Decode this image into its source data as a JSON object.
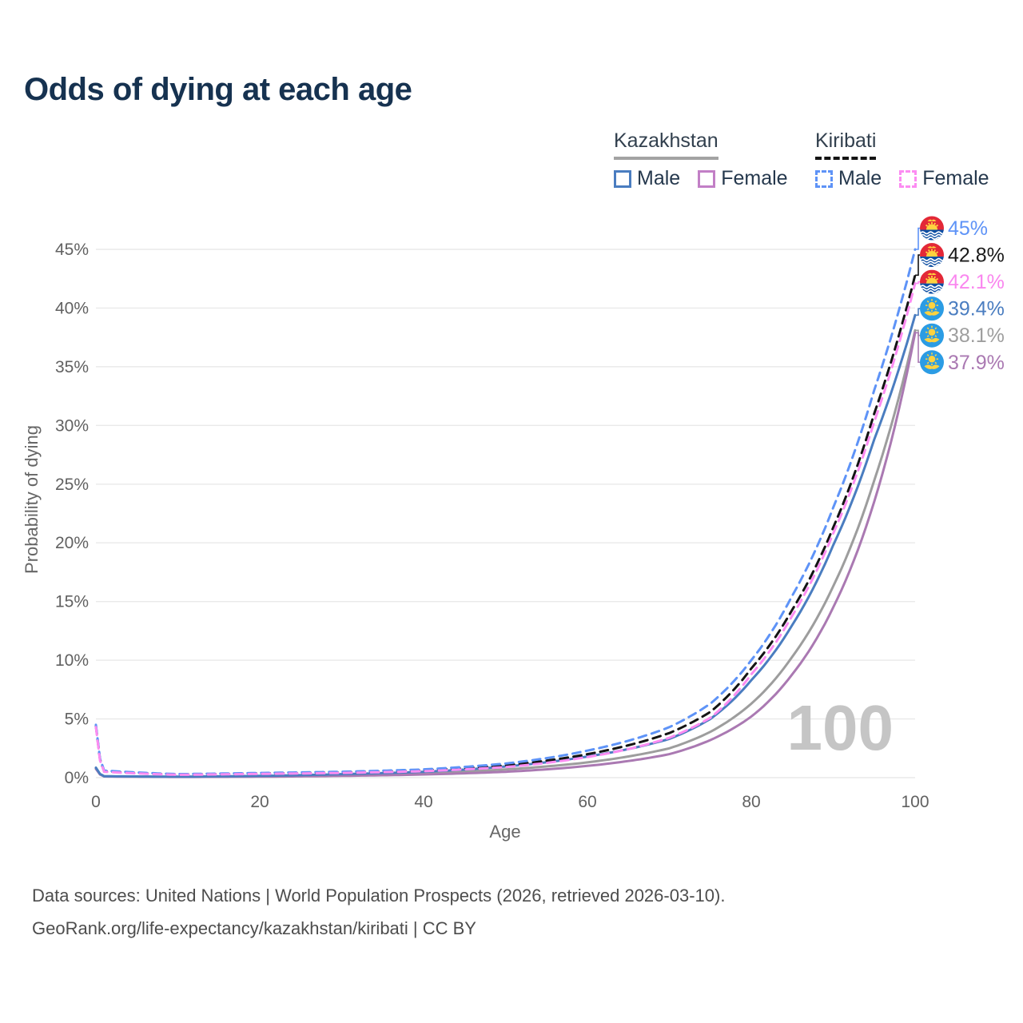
{
  "title": "Odds of dying at each age",
  "legend": {
    "groups": [
      {
        "name": "Kazakhstan",
        "line_style": "solid",
        "underline_color": "#a3a3a3",
        "items": [
          {
            "label": "Male",
            "color": "#4a7dc0"
          },
          {
            "label": "Female",
            "color": "#c27fc6"
          }
        ]
      },
      {
        "name": "Kiribati",
        "line_style": "dashed",
        "underline_color": "#141414",
        "items": [
          {
            "label": "Male",
            "color": "#5e93f7"
          },
          {
            "label": "Female",
            "color": "#fc8cf2"
          }
        ]
      }
    ]
  },
  "watermark": {
    "text": "100"
  },
  "footer": {
    "line1": "Data sources: United Nations | World Population Prospects (2026, retrieved 2026-03-10).",
    "line2": "GeoRank.org/life-expectancy/kazakhstan/kiribati | CC BY"
  },
  "chart_data": {
    "type": "line",
    "title": "Odds of dying at each age",
    "xlabel": "Age",
    "ylabel": "Probability of dying",
    "xlim": [
      0,
      100
    ],
    "ylim": [
      0,
      47
    ],
    "x_ticks": [
      0,
      20,
      40,
      60,
      80,
      100
    ],
    "y_ticks": [
      {
        "pct": 0,
        "label": "0%"
      },
      {
        "pct": 5,
        "label": "5%"
      },
      {
        "pct": 10,
        "label": "10%"
      },
      {
        "pct": 15,
        "label": "15%"
      },
      {
        "pct": 20,
        "label": "20%"
      },
      {
        "pct": 25,
        "label": "25%"
      },
      {
        "pct": 30,
        "label": "30%"
      },
      {
        "pct": 35,
        "label": "35%"
      },
      {
        "pct": 40,
        "label": "40%"
      },
      {
        "pct": 45,
        "label": "45%"
      }
    ],
    "grid": "horizontal",
    "legend_position": "top-right",
    "knot_ages": [
      0,
      1,
      10,
      20,
      30,
      40,
      50,
      60,
      70,
      75,
      80,
      85,
      90,
      95,
      100
    ],
    "series": [
      {
        "name": "Kazakhstan All",
        "country": "Kazakhstan",
        "sex": "all",
        "flag": "kz",
        "color": "#9d9d9d",
        "label_color": "#9e9e9e",
        "dash": false,
        "end_label": "38.1%",
        "end_value": 38.1,
        "values": [
          0.8,
          0.11,
          0.07,
          0.12,
          0.22,
          0.38,
          0.7,
          1.3,
          2.5,
          3.9,
          6.3,
          10.3,
          16.3,
          25.3,
          38.1
        ]
      },
      {
        "name": "Kazakhstan Female",
        "country": "Kazakhstan",
        "sex": "female",
        "flag": "kz",
        "color": "#aa79b2",
        "label_color": "#aa79b2",
        "dash": false,
        "end_label": "37.9%",
        "end_value": 37.9,
        "values": [
          0.75,
          0.1,
          0.06,
          0.08,
          0.15,
          0.27,
          0.5,
          1.0,
          2.0,
          3.2,
          5.2,
          8.8,
          14.5,
          23.5,
          37.9
        ]
      },
      {
        "name": "Kazakhstan Male",
        "country": "Kazakhstan",
        "sex": "male",
        "flag": "kz",
        "color": "#4a7dc0",
        "label_color": "#4a7dc0",
        "dash": false,
        "end_label": "39.4%",
        "end_value": 39.4,
        "values": [
          0.85,
          0.12,
          0.08,
          0.15,
          0.3,
          0.5,
          0.95,
          1.8,
          3.3,
          5.0,
          8.3,
          13.0,
          19.8,
          28.8,
          39.4
        ]
      },
      {
        "name": "Kiribati All",
        "country": "Kiribati",
        "sex": "all",
        "flag": "ki",
        "color": "#141414",
        "label_color": "#1a1a1a",
        "dash": true,
        "end_label": "42.8%",
        "end_value": 42.8,
        "values": [
          4.4,
          0.55,
          0.27,
          0.36,
          0.45,
          0.62,
          1.05,
          2.0,
          3.8,
          5.6,
          9.3,
          14.3,
          21.3,
          31.0,
          42.8
        ]
      },
      {
        "name": "Kiribati Male",
        "country": "Kiribati",
        "sex": "male",
        "flag": "ki",
        "color": "#5e93f7",
        "label_color": "#5e93f7",
        "dash": true,
        "end_label": "45%",
        "end_value": 45.0,
        "values": [
          4.5,
          0.6,
          0.3,
          0.4,
          0.5,
          0.7,
          1.2,
          2.3,
          4.3,
          6.3,
          10.0,
          15.5,
          23.0,
          33.0,
          45.0
        ]
      },
      {
        "name": "Kiribati Female",
        "country": "Kiribati",
        "sex": "female",
        "flag": "ki",
        "color": "#fc8cf2",
        "label_color": "#fa87ef",
        "dash": true,
        "end_label": "42.1%",
        "end_value": 42.1,
        "values": [
          4.3,
          0.5,
          0.24,
          0.32,
          0.4,
          0.55,
          0.9,
          1.75,
          3.4,
          5.1,
          8.8,
          13.8,
          20.8,
          30.3,
          42.1
        ]
      }
    ]
  }
}
